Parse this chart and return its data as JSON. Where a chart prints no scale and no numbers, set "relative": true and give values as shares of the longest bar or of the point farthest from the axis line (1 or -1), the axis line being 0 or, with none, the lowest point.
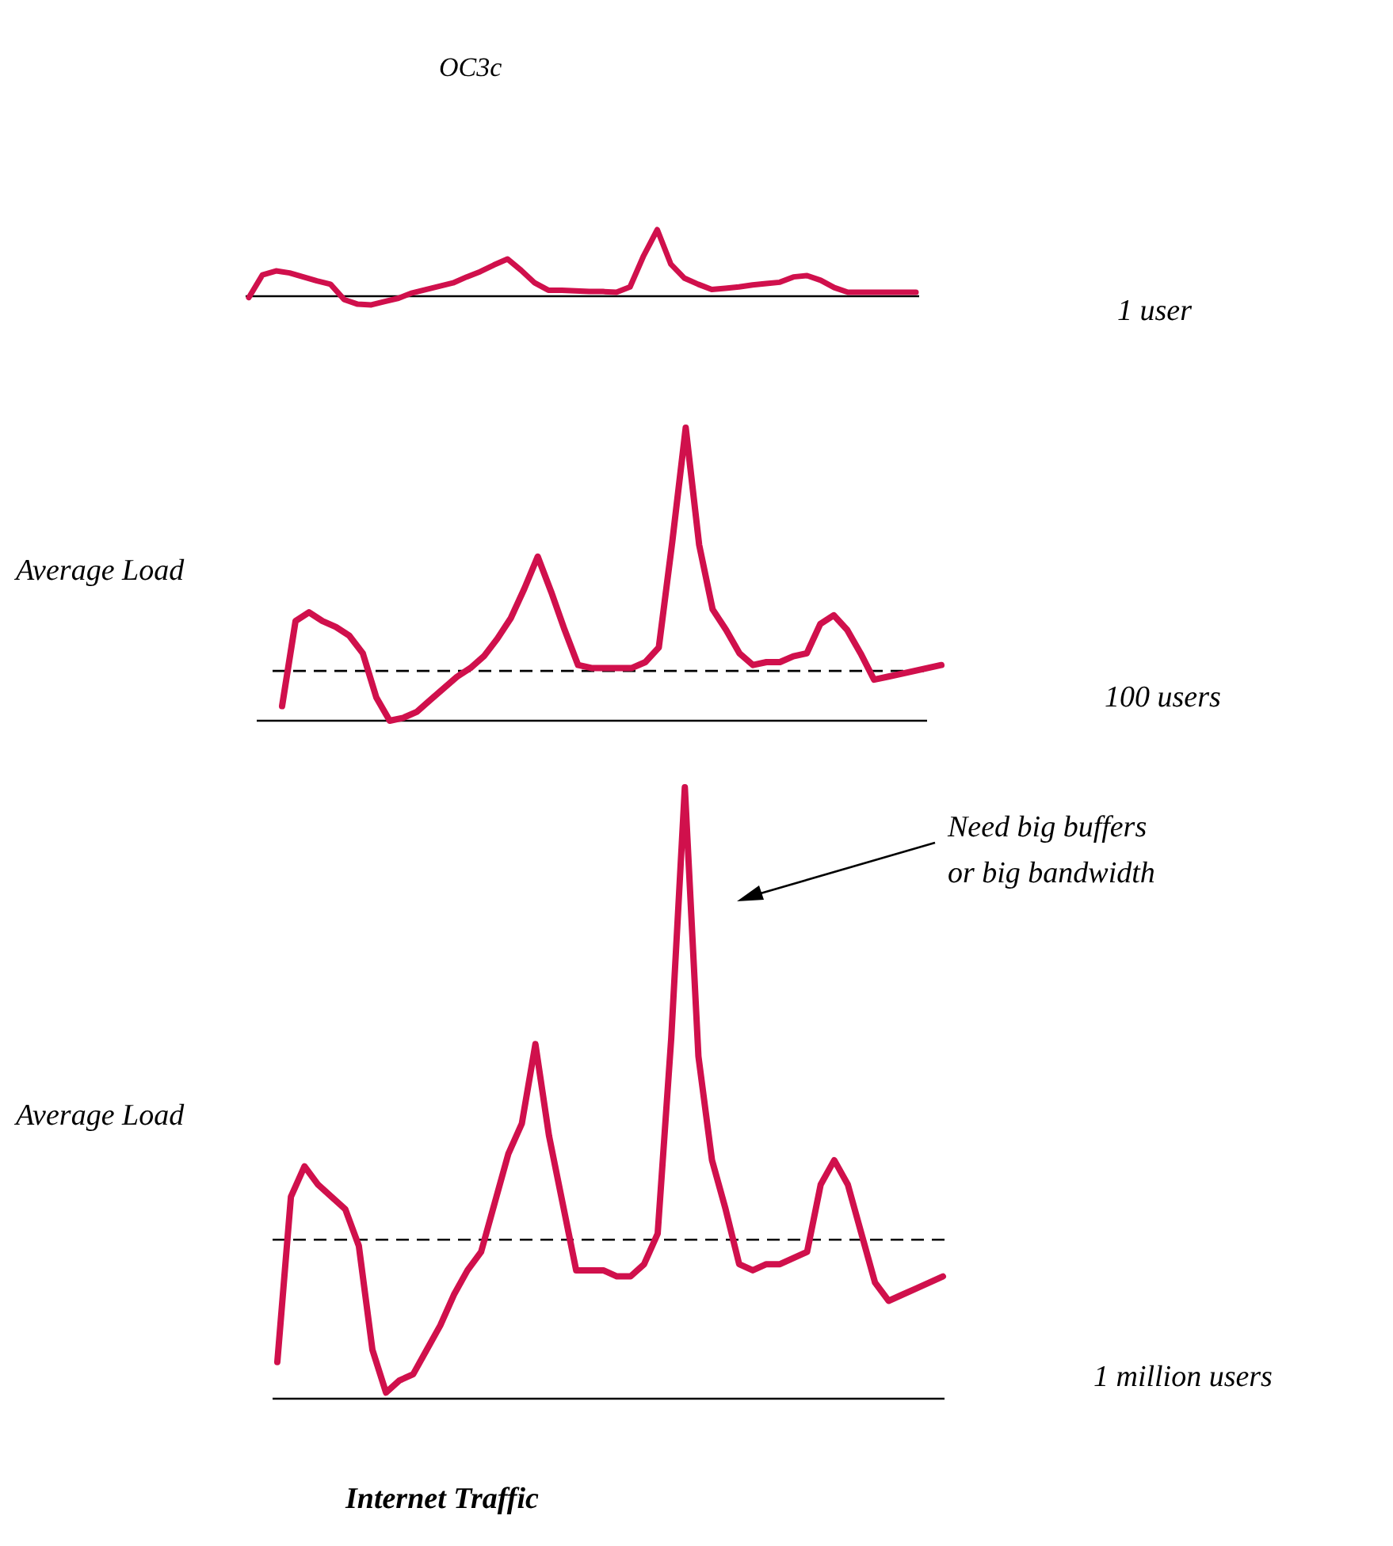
{
  "chart_data": [
    {
      "type": "line",
      "title": "OC3c",
      "relative": true,
      "categories": [
        null,
        null,
        null,
        null,
        null,
        null,
        null,
        null,
        null,
        null,
        null,
        null,
        null,
        null,
        null,
        null,
        null,
        null,
        null,
        null,
        null,
        null,
        null,
        null,
        null,
        null,
        null,
        null,
        null,
        null,
        null,
        null,
        null,
        null,
        null,
        null,
        null,
        null,
        null,
        null,
        null,
        null,
        null,
        null,
        null,
        null,
        null,
        null,
        null,
        null
      ],
      "annotations": [
        "1 user"
      ],
      "series": [
        {
          "color": "#d0104c",
          "values": [
            -0.02,
            0.32,
            0.38,
            0.35,
            0.29,
            0.23,
            0.18,
            -0.05,
            -0.12,
            -0.13,
            -0.08,
            -0.03,
            0.05,
            0.1,
            0.15,
            0.2,
            0.29,
            0.37,
            0.47,
            0.56,
            0.39,
            0.2,
            0.09,
            0.09,
            0.08,
            0.07,
            0.07,
            0.06,
            0.14,
            0.61,
            1,
            0.48,
            0.27,
            0.18,
            0.1,
            0.12,
            0.14,
            0.17,
            0.19,
            0.21,
            0.29,
            0.31,
            0.24,
            0.13,
            0.06,
            0.06,
            0.06,
            0.06,
            0.06,
            0.06
          ]
        }
      ]
    },
    {
      "type": "line",
      "relative": true,
      "categories": [
        null,
        null,
        null,
        null,
        null,
        null,
        null,
        null,
        null,
        null,
        null,
        null,
        null,
        null,
        null,
        null,
        null,
        null,
        null,
        null,
        null,
        null,
        null,
        null,
        null,
        null,
        null,
        null,
        null,
        null,
        null,
        null,
        null,
        null,
        null,
        null,
        null,
        null,
        null,
        null,
        null,
        null,
        null,
        null,
        null,
        null,
        null,
        null,
        null,
        null
      ],
      "annotations": [
        "100 users"
      ],
      "series": [
        {
          "color": "#d0104c",
          "values": [
            0.05,
            0.34,
            0.37,
            0.34,
            0.32,
            0.29,
            0.23,
            0.08,
            0,
            0.01,
            0.03,
            0.07,
            0.11,
            0.15,
            0.18,
            0.22,
            0.28,
            0.35,
            0.45,
            0.56,
            0.44,
            0.31,
            0.19,
            0.18,
            0.18,
            0.18,
            0.18,
            0.2,
            0.25,
            0.61,
            1,
            0.6,
            0.38,
            0.31,
            0.23,
            0.19,
            0.2,
            0.2,
            0.22,
            0.23,
            0.33,
            0.36,
            0.31,
            0.23,
            0.14,
            0.15,
            0.16,
            0.17,
            0.18,
            0.19
          ]
        }
      ],
      "ref_lines": [
        {
          "axis": "y",
          "value": 0.17,
          "label": "Average Load",
          "line_style": "dashed",
          "color": "#000000"
        }
      ]
    },
    {
      "type": "line",
      "relative": true,
      "xlabel": "Internet Traffic",
      "annotations": [
        "1 million users",
        "Need big buffers or big bandwidth"
      ],
      "categories": [
        null,
        null,
        null,
        null,
        null,
        null,
        null,
        null,
        null,
        null,
        null,
        null,
        null,
        null,
        null,
        null,
        null,
        null,
        null,
        null,
        null,
        null,
        null,
        null,
        null,
        null,
        null,
        null,
        null,
        null,
        null,
        null,
        null,
        null,
        null,
        null,
        null,
        null,
        null,
        null,
        null,
        null,
        null,
        null,
        null,
        null,
        null,
        null,
        null,
        null
      ],
      "series": [
        {
          "color": "#d0104c",
          "values": [
            0.06,
            0.33,
            0.38,
            0.35,
            0.33,
            0.31,
            0.25,
            0.08,
            0.01,
            0.03,
            0.04,
            0.08,
            0.12,
            0.17,
            0.21,
            0.24,
            0.32,
            0.4,
            0.45,
            0.58,
            0.43,
            0.32,
            0.21,
            0.21,
            0.21,
            0.2,
            0.2,
            0.22,
            0.27,
            0.59,
            1,
            0.56,
            0.39,
            0.31,
            0.22,
            0.21,
            0.22,
            0.22,
            0.23,
            0.24,
            0.35,
            0.39,
            0.35,
            0.27,
            0.19,
            0.16,
            0.17,
            0.18,
            0.19,
            0.2
          ]
        }
      ],
      "ref_lines": [
        {
          "axis": "y",
          "value": 0.26,
          "label": "Average Load",
          "line_style": "dashed",
          "color": "#000000"
        }
      ]
    }
  ]
}
